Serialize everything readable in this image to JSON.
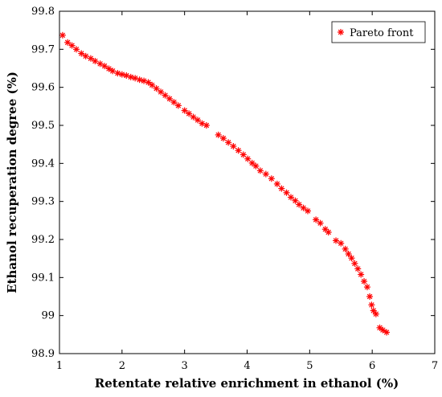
{
  "chart_data": {
    "type": "scatter",
    "title": "",
    "xlabel": "Retentate relative enrichment in ethanol (%)",
    "ylabel": "Ethanol recuperation degree (%)",
    "xlim": [
      1,
      7
    ],
    "ylim": [
      98.9,
      99.8
    ],
    "xticks": [
      "1",
      "2",
      "3",
      "4",
      "5",
      "6",
      "7"
    ],
    "yticks": [
      "98.9",
      "99",
      "99.1",
      "99.2",
      "99.3",
      "99.4",
      "99.5",
      "99.6",
      "99.7",
      "99.8"
    ],
    "grid": false,
    "legend_position": "top-right",
    "series": [
      {
        "name": "Pareto front",
        "color": "#ff0000",
        "marker": "asterisk",
        "points": [
          [
            1.05,
            99.737
          ],
          [
            1.13,
            99.718
          ],
          [
            1.2,
            99.71
          ],
          [
            1.27,
            99.7
          ],
          [
            1.35,
            99.689
          ],
          [
            1.42,
            99.682
          ],
          [
            1.5,
            99.676
          ],
          [
            1.57,
            99.669
          ],
          [
            1.65,
            99.662
          ],
          [
            1.72,
            99.656
          ],
          [
            1.79,
            99.649
          ],
          [
            1.85,
            99.643
          ],
          [
            1.93,
            99.637
          ],
          [
            2.0,
            99.634
          ],
          [
            2.07,
            99.631
          ],
          [
            2.14,
            99.627
          ],
          [
            2.21,
            99.624
          ],
          [
            2.28,
            99.62
          ],
          [
            2.35,
            99.617
          ],
          [
            2.42,
            99.613
          ],
          [
            2.48,
            99.606
          ],
          [
            2.55,
            99.597
          ],
          [
            2.62,
            99.588
          ],
          [
            2.69,
            99.579
          ],
          [
            2.76,
            99.57
          ],
          [
            2.83,
            99.561
          ],
          [
            2.9,
            99.552
          ],
          [
            3.0,
            99.539
          ],
          [
            3.07,
            99.531
          ],
          [
            3.14,
            99.522
          ],
          [
            3.21,
            99.514
          ],
          [
            3.28,
            99.505
          ],
          [
            3.35,
            99.5
          ],
          [
            3.54,
            99.475
          ],
          [
            3.62,
            99.466
          ],
          [
            3.7,
            99.455
          ],
          [
            3.78,
            99.445
          ],
          [
            3.86,
            99.434
          ],
          [
            3.94,
            99.423
          ],
          [
            4.01,
            99.412
          ],
          [
            4.08,
            99.401
          ],
          [
            4.14,
            99.393
          ],
          [
            4.21,
            99.381
          ],
          [
            4.3,
            99.372
          ],
          [
            4.39,
            99.36
          ],
          [
            4.48,
            99.346
          ],
          [
            4.55,
            99.334
          ],
          [
            4.63,
            99.323
          ],
          [
            4.7,
            99.311
          ],
          [
            4.77,
            99.302
          ],
          [
            4.83,
            99.292
          ],
          [
            4.9,
            99.283
          ],
          [
            4.97,
            99.275
          ],
          [
            5.1,
            99.252
          ],
          [
            5.17,
            99.243
          ],
          [
            5.25,
            99.227
          ],
          [
            5.3,
            99.219
          ],
          [
            5.42,
            99.197
          ],
          [
            5.5,
            99.19
          ],
          [
            5.57,
            99.175
          ],
          [
            5.62,
            99.162
          ],
          [
            5.67,
            99.151
          ],
          [
            5.72,
            99.137
          ],
          [
            5.77,
            99.123
          ],
          [
            5.82,
            99.108
          ],
          [
            5.87,
            99.09
          ],
          [
            5.92,
            99.075
          ],
          [
            5.96,
            99.05
          ],
          [
            5.99,
            99.028
          ],
          [
            6.02,
            99.013
          ],
          [
            6.06,
            99.004
          ],
          [
            6.12,
            98.968
          ],
          [
            6.17,
            98.962
          ],
          [
            6.23,
            98.956
          ]
        ]
      }
    ]
  }
}
